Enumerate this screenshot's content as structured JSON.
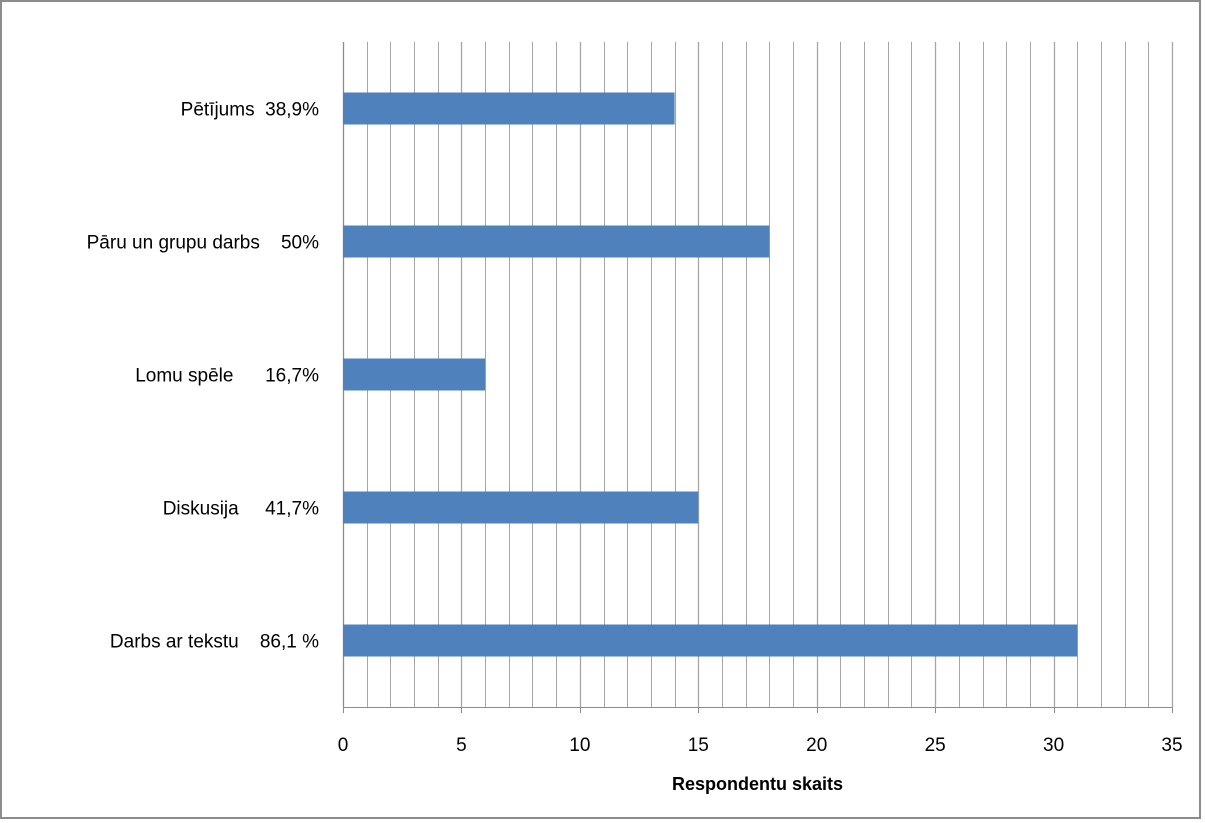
{
  "chart_data": {
    "type": "bar",
    "orientation": "horizontal",
    "categories": [
      "Pētījums  38,9%",
      "Pāru un grupu darbs    50%",
      "Lomu spēle      16,7%",
      "Diskusija     41,7%",
      "Darbs ar tekstu    86,1 %"
    ],
    "values": [
      14,
      18,
      6,
      15,
      31
    ],
    "xlabel": "Respondentu skaits",
    "ylabel": "",
    "xlim": [
      0,
      35
    ],
    "major_ticks": [
      0,
      5,
      10,
      15,
      20,
      25,
      30,
      35
    ],
    "minor_tick_step": 1,
    "grid": true,
    "legend": false,
    "bar_color": "#4f81bd",
    "grid_color": "#a6a6a6",
    "frame_color": "#8c8c8c"
  }
}
